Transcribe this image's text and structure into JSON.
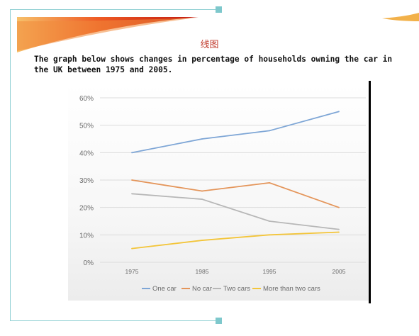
{
  "slide": {
    "title": "线图",
    "description": "The graph below shows changes in percentage of households owning the car in the UK between 1975 and 2005."
  },
  "chart_data": {
    "type": "line",
    "title": "",
    "xlabel": "",
    "ylabel": "",
    "x": [
      "1975",
      "1985",
      "1995",
      "2005"
    ],
    "y_ticks": [
      "0%",
      "10%",
      "20%",
      "30%",
      "40%",
      "50%",
      "60%"
    ],
    "ylim": [
      0,
      60
    ],
    "grid": true,
    "legend_position": "bottom",
    "series": [
      {
        "name": "One car",
        "values": [
          40,
          45,
          48,
          55
        ],
        "color": "#7ea6d6"
      },
      {
        "name": "No car",
        "values": [
          30,
          26,
          29,
          20
        ],
        "color": "#e4955a"
      },
      {
        "name": "Two cars",
        "values": [
          25,
          23,
          15,
          12
        ],
        "color": "#b7b7b7"
      },
      {
        "name": "More than two cars",
        "values": [
          5,
          8,
          10,
          11
        ],
        "color": "#f3c53a"
      }
    ]
  }
}
